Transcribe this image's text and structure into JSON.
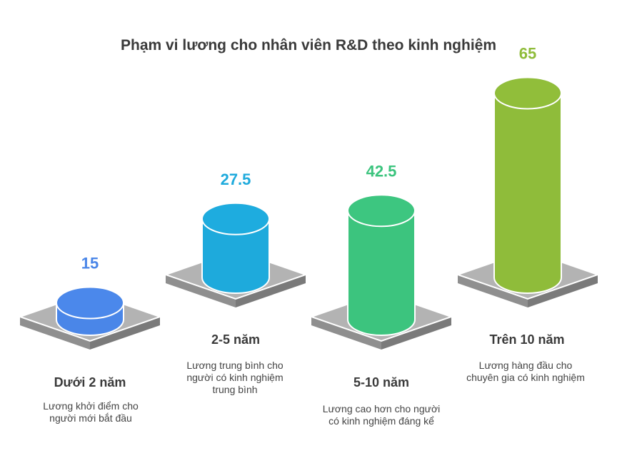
{
  "chart_data": {
    "type": "bar",
    "title": "Phạm vi lương cho nhân viên R&D theo kinh nghiệm",
    "categories": [
      "Dưới 2 năm",
      "2-5 năm",
      "5-10 năm",
      "Trên 10 năm"
    ],
    "values": [
      15,
      27.5,
      42.5,
      65
    ],
    "value_labels": [
      "15",
      "27.5",
      "42.5",
      "65"
    ],
    "descriptions": [
      "Lương khởi điểm cho người mới bắt đầu",
      "Lương trung bình cho người có kinh nghiệm trung bình",
      "Lương cao hơn cho người có kinh nghiệm đáng kể",
      "Lương hàng đầu cho chuyên gia có kinh nghiệm"
    ],
    "colors": [
      "#4a86e8",
      "#1eaadc",
      "#3cc47e",
      "#8fbc3a"
    ],
    "xlabel": "",
    "ylabel": "",
    "grid": false,
    "legend": "none"
  }
}
